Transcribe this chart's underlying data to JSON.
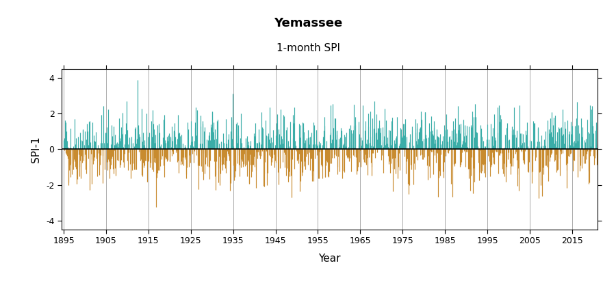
{
  "title": "Yemassee",
  "subtitle": "1-month SPI",
  "ylabel": "SPI-1",
  "xlabel": "Year",
  "start_year": 1895,
  "end_year": 2020,
  "ylim": [
    -4.5,
    4.5
  ],
  "yticks": [
    -4,
    -2,
    0,
    2,
    4
  ],
  "xticks": [
    1895,
    1905,
    1915,
    1925,
    1935,
    1945,
    1955,
    1965,
    1975,
    1985,
    1995,
    2005,
    2015
  ],
  "color_positive": "#3aada8",
  "color_negative": "#c88b2f",
  "vgrid_color": "#aaaaaa",
  "bg_color": "#ffffff",
  "title_fontsize": 13,
  "subtitle_fontsize": 11,
  "label_fontsize": 11,
  "tick_fontsize": 9,
  "seed": 42,
  "alpha": 0.18
}
